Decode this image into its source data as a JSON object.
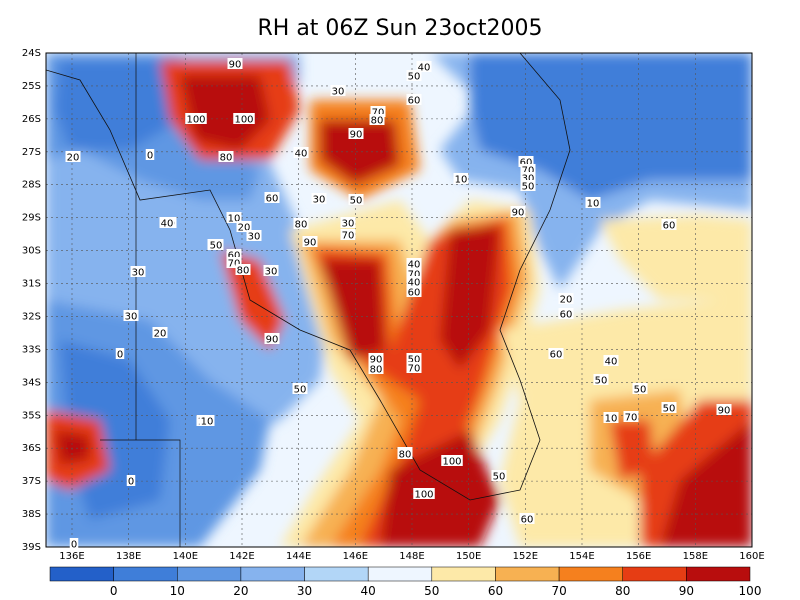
{
  "title": "RH at 06Z Sun 23oct2005",
  "map": {
    "lat_ticks": [
      "24S",
      "25S",
      "26S",
      "27S",
      "28S",
      "29S",
      "30S",
      "31S",
      "32S",
      "33S",
      "34S",
      "35S",
      "36S",
      "37S",
      "38S",
      "39S"
    ],
    "lon_ticks": [
      "136E",
      "138E",
      "140E",
      "142E",
      "144E",
      "146E",
      "148E",
      "150E",
      "152E",
      "154E",
      "156E",
      "158E",
      "160E"
    ],
    "grid": true,
    "grid_style": "dotted"
  },
  "colorbar": {
    "labels": [
      "0",
      "10",
      "20",
      "30",
      "40",
      "50",
      "60",
      "70",
      "80",
      "90",
      "100"
    ],
    "colors": [
      "#2360c9",
      "#3f7ed9",
      "#5f97e3",
      "#86b3ee",
      "#b2d6f7",
      "#eef6ff",
      "#fde9a8",
      "#f7b152",
      "#f5801e",
      "#e63d14",
      "#b80d0d"
    ]
  },
  "contour_labels": [
    {
      "text": "90"
    },
    {
      "text": "100"
    },
    {
      "text": "100"
    },
    {
      "text": "80"
    },
    {
      "text": "30"
    },
    {
      "text": "40"
    },
    {
      "text": "50"
    },
    {
      "text": "60"
    },
    {
      "text": "70"
    },
    {
      "text": "80"
    },
    {
      "text": "90"
    },
    {
      "text": "40"
    },
    {
      "text": "30"
    },
    {
      "text": "50"
    },
    {
      "text": "20"
    },
    {
      "text": "0"
    },
    {
      "text": "10"
    },
    {
      "text": "60"
    },
    {
      "text": "40"
    },
    {
      "text": "10"
    },
    {
      "text": "20"
    },
    {
      "text": "30"
    },
    {
      "text": "50"
    },
    {
      "text": "60"
    },
    {
      "text": "70"
    },
    {
      "text": "80"
    },
    {
      "text": "30"
    },
    {
      "text": "80"
    },
    {
      "text": "90"
    },
    {
      "text": "70"
    },
    {
      "text": "30"
    },
    {
      "text": "40"
    },
    {
      "text": "30"
    },
    {
      "text": "20"
    },
    {
      "text": "90"
    },
    {
      "text": "0"
    },
    {
      "text": "90"
    },
    {
      "text": "80"
    },
    {
      "text": "50"
    },
    {
      "text": "70"
    },
    {
      "text": "70"
    },
    {
      "text": "40"
    },
    {
      "text": "60"
    },
    {
      "text": "50"
    },
    {
      "text": "80"
    },
    {
      "text": "60"
    },
    {
      "text": "10"
    },
    {
      "text": "70"
    },
    {
      "text": "30"
    },
    {
      "text": "50"
    },
    {
      "text": "90"
    },
    {
      "text": "10"
    },
    {
      "text": "20"
    },
    {
      "text": "30"
    },
    {
      "text": "40"
    },
    {
      "text": "50"
    },
    {
      "text": "60"
    },
    {
      "text": "50"
    },
    {
      "text": "10"
    },
    {
      "text": "0"
    },
    {
      "text": "80"
    },
    {
      "text": "100"
    },
    {
      "text": "100"
    },
    {
      "text": "50"
    },
    {
      "text": "60"
    },
    {
      "text": "60"
    },
    {
      "text": "50"
    },
    {
      "text": "40"
    },
    {
      "text": "60"
    },
    {
      "text": "70"
    },
    {
      "text": "50"
    },
    {
      "text": "90"
    },
    {
      "text": "0"
    },
    {
      "text": "10"
    }
  ]
}
